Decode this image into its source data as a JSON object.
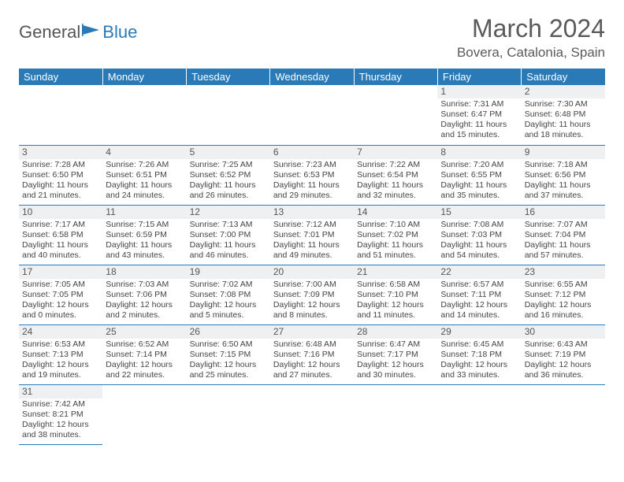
{
  "logo": {
    "general": "General",
    "blue": "Blue"
  },
  "title": "March 2024",
  "location": "Bovera, Catalonia, Spain",
  "weekdays": [
    "Sunday",
    "Monday",
    "Tuesday",
    "Wednesday",
    "Thursday",
    "Friday",
    "Saturday"
  ],
  "colors": {
    "headerBg": "#2a7ab8",
    "ruleColor": "#2a7ab8",
    "stripe": "#eef0f2"
  },
  "weeks": [
    [
      null,
      null,
      null,
      null,
      null,
      {
        "n": "1",
        "sr": "7:31 AM",
        "ss": "6:47 PM",
        "dl": "11 hours and 15 minutes."
      },
      {
        "n": "2",
        "sr": "7:30 AM",
        "ss": "6:48 PM",
        "dl": "11 hours and 18 minutes."
      }
    ],
    [
      {
        "n": "3",
        "sr": "7:28 AM",
        "ss": "6:50 PM",
        "dl": "11 hours and 21 minutes."
      },
      {
        "n": "4",
        "sr": "7:26 AM",
        "ss": "6:51 PM",
        "dl": "11 hours and 24 minutes."
      },
      {
        "n": "5",
        "sr": "7:25 AM",
        "ss": "6:52 PM",
        "dl": "11 hours and 26 minutes."
      },
      {
        "n": "6",
        "sr": "7:23 AM",
        "ss": "6:53 PM",
        "dl": "11 hours and 29 minutes."
      },
      {
        "n": "7",
        "sr": "7:22 AM",
        "ss": "6:54 PM",
        "dl": "11 hours and 32 minutes."
      },
      {
        "n": "8",
        "sr": "7:20 AM",
        "ss": "6:55 PM",
        "dl": "11 hours and 35 minutes."
      },
      {
        "n": "9",
        "sr": "7:18 AM",
        "ss": "6:56 PM",
        "dl": "11 hours and 37 minutes."
      }
    ],
    [
      {
        "n": "10",
        "sr": "7:17 AM",
        "ss": "6:58 PM",
        "dl": "11 hours and 40 minutes."
      },
      {
        "n": "11",
        "sr": "7:15 AM",
        "ss": "6:59 PM",
        "dl": "11 hours and 43 minutes."
      },
      {
        "n": "12",
        "sr": "7:13 AM",
        "ss": "7:00 PM",
        "dl": "11 hours and 46 minutes."
      },
      {
        "n": "13",
        "sr": "7:12 AM",
        "ss": "7:01 PM",
        "dl": "11 hours and 49 minutes."
      },
      {
        "n": "14",
        "sr": "7:10 AM",
        "ss": "7:02 PM",
        "dl": "11 hours and 51 minutes."
      },
      {
        "n": "15",
        "sr": "7:08 AM",
        "ss": "7:03 PM",
        "dl": "11 hours and 54 minutes."
      },
      {
        "n": "16",
        "sr": "7:07 AM",
        "ss": "7:04 PM",
        "dl": "11 hours and 57 minutes."
      }
    ],
    [
      {
        "n": "17",
        "sr": "7:05 AM",
        "ss": "7:05 PM",
        "dl": "12 hours and 0 minutes."
      },
      {
        "n": "18",
        "sr": "7:03 AM",
        "ss": "7:06 PM",
        "dl": "12 hours and 2 minutes."
      },
      {
        "n": "19",
        "sr": "7:02 AM",
        "ss": "7:08 PM",
        "dl": "12 hours and 5 minutes."
      },
      {
        "n": "20",
        "sr": "7:00 AM",
        "ss": "7:09 PM",
        "dl": "12 hours and 8 minutes."
      },
      {
        "n": "21",
        "sr": "6:58 AM",
        "ss": "7:10 PM",
        "dl": "12 hours and 11 minutes."
      },
      {
        "n": "22",
        "sr": "6:57 AM",
        "ss": "7:11 PM",
        "dl": "12 hours and 14 minutes."
      },
      {
        "n": "23",
        "sr": "6:55 AM",
        "ss": "7:12 PM",
        "dl": "12 hours and 16 minutes."
      }
    ],
    [
      {
        "n": "24",
        "sr": "6:53 AM",
        "ss": "7:13 PM",
        "dl": "12 hours and 19 minutes."
      },
      {
        "n": "25",
        "sr": "6:52 AM",
        "ss": "7:14 PM",
        "dl": "12 hours and 22 minutes."
      },
      {
        "n": "26",
        "sr": "6:50 AM",
        "ss": "7:15 PM",
        "dl": "12 hours and 25 minutes."
      },
      {
        "n": "27",
        "sr": "6:48 AM",
        "ss": "7:16 PM",
        "dl": "12 hours and 27 minutes."
      },
      {
        "n": "28",
        "sr": "6:47 AM",
        "ss": "7:17 PM",
        "dl": "12 hours and 30 minutes."
      },
      {
        "n": "29",
        "sr": "6:45 AM",
        "ss": "7:18 PM",
        "dl": "12 hours and 33 minutes."
      },
      {
        "n": "30",
        "sr": "6:43 AM",
        "ss": "7:19 PM",
        "dl": "12 hours and 36 minutes."
      }
    ],
    [
      {
        "n": "31",
        "sr": "7:42 AM",
        "ss": "8:21 PM",
        "dl": "12 hours and 38 minutes."
      },
      null,
      null,
      null,
      null,
      null,
      null
    ]
  ],
  "labels": {
    "sunrise": "Sunrise: ",
    "sunset": "Sunset: ",
    "daylight": "Daylight: "
  }
}
